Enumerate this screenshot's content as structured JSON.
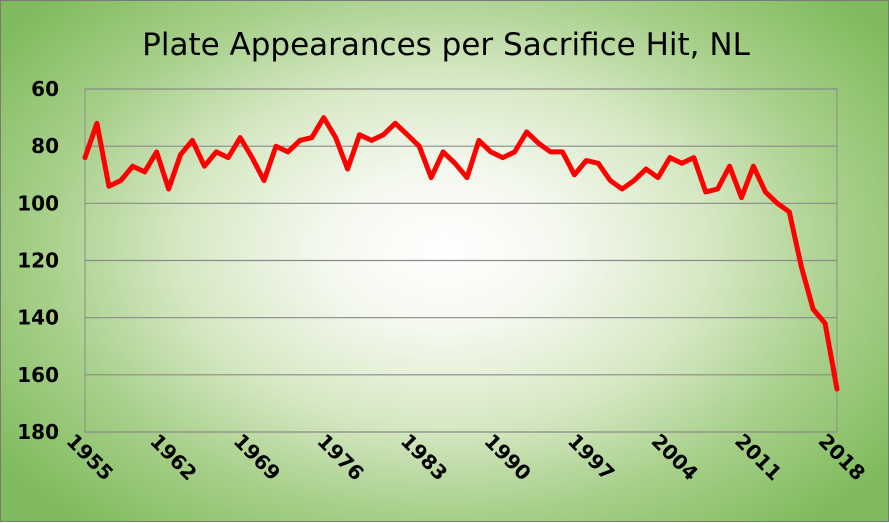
{
  "chart_data": {
    "type": "line",
    "title": "Plate Appearances per Sacrifice Hit, NL",
    "xlabel": "",
    "ylabel": "",
    "y_inverted": true,
    "ylim": [
      60,
      180
    ],
    "yticks": [
      60,
      80,
      100,
      120,
      140,
      160,
      180
    ],
    "xlim": [
      1955,
      2018
    ],
    "xticks": [
      1955,
      1962,
      1969,
      1976,
      1983,
      1990,
      1997,
      2004,
      2011,
      2018
    ],
    "grid": "horizontal",
    "legend": "none",
    "line_color": "#ff0000",
    "series": [
      {
        "x": [
          1955,
          1956,
          1957,
          1958,
          1959,
          1960,
          1961,
          1962,
          1963,
          1964,
          1965,
          1966,
          1967,
          1968,
          1969,
          1970,
          1971,
          1972,
          1973,
          1974,
          1975,
          1976,
          1977,
          1978,
          1979,
          1980,
          1981,
          1982,
          1983,
          1984,
          1985,
          1986,
          1987,
          1988,
          1989,
          1990,
          1991,
          1992,
          1993,
          1994,
          1995,
          1996,
          1997,
          1998,
          1999,
          2000,
          2001,
          2002,
          2003,
          2004,
          2005,
          2006,
          2007,
          2008,
          2009,
          2010,
          2011,
          2012,
          2013,
          2014,
          2015,
          2016,
          2017,
          2018
        ],
        "values": [
          84,
          72,
          94,
          92,
          87,
          89,
          82,
          95,
          83,
          78,
          87,
          82,
          84,
          77,
          84,
          92,
          80,
          82,
          78,
          77,
          70,
          77,
          88,
          76,
          78,
          76,
          72,
          76,
          80,
          91,
          82,
          86,
          91,
          78,
          82,
          84,
          82,
          75,
          79,
          82,
          82,
          90,
          85,
          86,
          92,
          95,
          92,
          88,
          91,
          84,
          86,
          84,
          96,
          95,
          87,
          98,
          87,
          96,
          100,
          103,
          122,
          137,
          142,
          165
        ]
      }
    ]
  }
}
